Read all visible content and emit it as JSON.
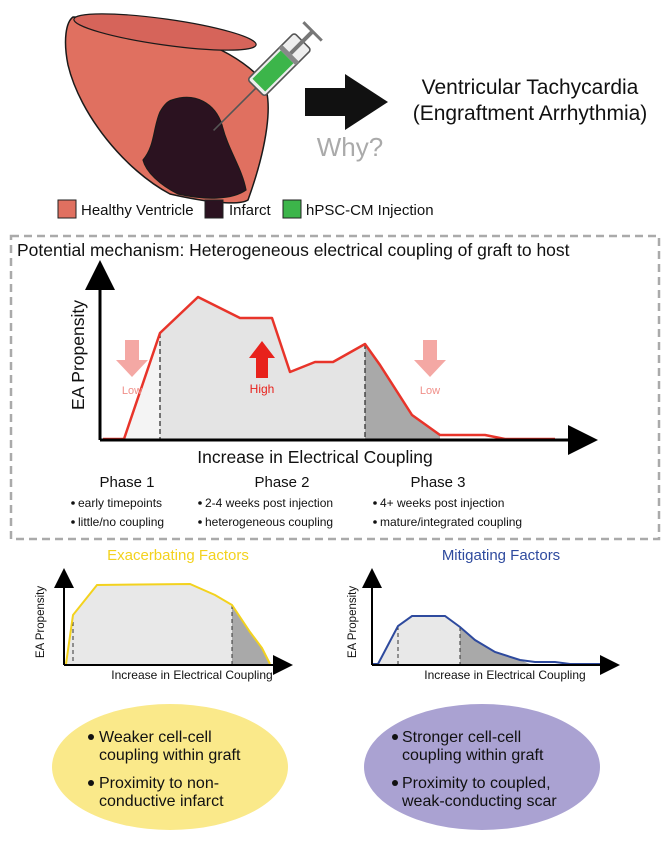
{
  "header": {
    "title_line1": "Ventricular Tachycardia",
    "title_line2": "(Engraftment Arrhythmia)",
    "question": "Why?"
  },
  "legend": {
    "items": [
      {
        "label": "Healthy Ventricle",
        "color": "#e07060"
      },
      {
        "label": "Infarct",
        "color": "#2b1220"
      },
      {
        "label": "hPSC-CM Injection",
        "color": "#3cb54a"
      }
    ]
  },
  "mechanism": {
    "title": "Potential mechanism: Heterogeneous electrical coupling of graft to host",
    "ylabel": "EA Propensity",
    "xlabel": "Increase in Electrical Coupling",
    "low_label_left": "Low",
    "high_label": "High",
    "low_label_right": "Low",
    "phases": [
      {
        "title": "Phase 1",
        "bullets": [
          "early timepoints",
          "little/no coupling"
        ]
      },
      {
        "title": "Phase 2",
        "bullets": [
          "2-4 weeks post injection",
          "heterogeneous coupling"
        ]
      },
      {
        "title": "Phase 3",
        "bullets": [
          "4+ weeks post injection",
          "mature/integrated coupling"
        ]
      }
    ]
  },
  "exacerbating": {
    "title": "Exacerbating Factors",
    "ylabel": "EA Propensity",
    "xlabel": "Increase in Electrical Coupling",
    "bullets": [
      [
        "Weaker cell-cell",
        "coupling within graft"
      ],
      [
        "Proximity to non-",
        "conductive infarct"
      ]
    ]
  },
  "mitigating": {
    "title": "Mitigating Factors",
    "ylabel": "EA Propensity",
    "xlabel": "Increase in Electrical Coupling",
    "bullets": [
      [
        "Stronger cell-cell",
        "coupling within graft"
      ],
      [
        "Proximity to coupled,",
        "weak-conducting scar"
      ]
    ]
  },
  "colors": {
    "healthy": "#e07060",
    "infarct": "#2b1220",
    "injection": "#3cb54a",
    "main_curve": "#e8342a",
    "arrow_low": "#f4a8a4",
    "arrow_high": "#e8221c",
    "exacerbating": "#f3d21e",
    "exacerbating_fill": "#fae98a",
    "mitigating": "#2e4a9e",
    "mitigating_fill": "#aaa2d2"
  }
}
